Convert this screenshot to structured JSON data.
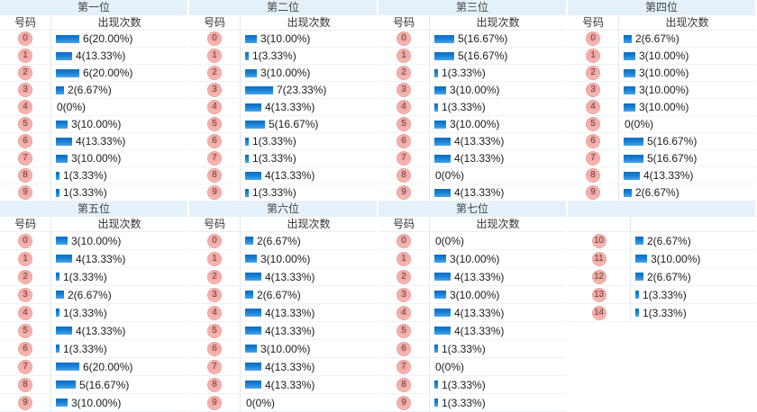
{
  "col_headers": {
    "number": "号码",
    "count": "出现次数"
  },
  "colors": {
    "header_band": "#e4f1fa",
    "bar_blue_top": "#0a6bc2",
    "bar_blue_bottom": "#4aa5e6",
    "badge_pink": "#f5b1ac",
    "badge_border": "#ec9f9a",
    "row_border": "#eef3f7",
    "value_text": "#1b1b1b"
  },
  "chart_data": [
    {
      "type": "bar",
      "title": "第一位",
      "continuation": false,
      "categories": [
        "0",
        "1",
        "2",
        "3",
        "4",
        "5",
        "6",
        "7",
        "8",
        "9"
      ],
      "values": [
        6,
        4,
        6,
        2,
        0,
        3,
        4,
        3,
        1,
        1
      ],
      "labels": [
        "6(20.00%)",
        "4(13.33%)",
        "6(20.00%)",
        "2(6.67%)",
        "0(0%)",
        "3(10.00%)",
        "4(13.33%)",
        "3(10.00%)",
        "1(3.33%)",
        "1(3.33%)"
      ]
    },
    {
      "type": "bar",
      "title": "第二位",
      "continuation": false,
      "categories": [
        "0",
        "1",
        "2",
        "3",
        "4",
        "5",
        "6",
        "7",
        "8",
        "9"
      ],
      "values": [
        3,
        1,
        3,
        7,
        4,
        5,
        1,
        1,
        4,
        1
      ],
      "labels": [
        "3(10.00%)",
        "1(3.33%)",
        "3(10.00%)",
        "7(23.33%)",
        "4(13.33%)",
        "5(16.67%)",
        "1(3.33%)",
        "1(3.33%)",
        "4(13.33%)",
        "1(3.33%)"
      ]
    },
    {
      "type": "bar",
      "title": "第三位",
      "continuation": false,
      "categories": [
        "0",
        "1",
        "2",
        "3",
        "4",
        "5",
        "6",
        "7",
        "8",
        "9"
      ],
      "values": [
        5,
        5,
        1,
        3,
        1,
        3,
        4,
        4,
        0,
        4
      ],
      "labels": [
        "5(16.67%)",
        "5(16.67%)",
        "1(3.33%)",
        "3(10.00%)",
        "1(3.33%)",
        "3(10.00%)",
        "4(13.33%)",
        "4(13.33%)",
        "0(0%)",
        "4(13.33%)"
      ]
    },
    {
      "type": "bar",
      "title": "第四位",
      "continuation": false,
      "categories": [
        "0",
        "1",
        "2",
        "3",
        "4",
        "5",
        "6",
        "7",
        "8",
        "9"
      ],
      "values": [
        2,
        3,
        3,
        3,
        3,
        0,
        5,
        5,
        4,
        2
      ],
      "labels": [
        "2(6.67%)",
        "3(10.00%)",
        "3(10.00%)",
        "3(10.00%)",
        "3(10.00%)",
        "0(0%)",
        "5(16.67%)",
        "5(16.67%)",
        "4(13.33%)",
        "2(6.67%)"
      ]
    },
    {
      "type": "bar",
      "title": "第五位",
      "continuation": false,
      "categories": [
        "0",
        "1",
        "2",
        "3",
        "4",
        "5",
        "6",
        "7",
        "8",
        "9"
      ],
      "values": [
        3,
        4,
        1,
        2,
        1,
        4,
        1,
        6,
        5,
        3
      ],
      "labels": [
        "3(10.00%)",
        "4(13.33%)",
        "1(3.33%)",
        "2(6.67%)",
        "1(3.33%)",
        "4(13.33%)",
        "1(3.33%)",
        "6(20.00%)",
        "5(16.67%)",
        "3(10.00%)"
      ]
    },
    {
      "type": "bar",
      "title": "第六位",
      "continuation": false,
      "categories": [
        "0",
        "1",
        "2",
        "3",
        "4",
        "5",
        "6",
        "7",
        "8",
        "9"
      ],
      "values": [
        2,
        3,
        4,
        2,
        4,
        4,
        3,
        4,
        4,
        0
      ],
      "labels": [
        "2(6.67%)",
        "3(10.00%)",
        "4(13.33%)",
        "2(6.67%)",
        "4(13.33%)",
        "4(13.33%)",
        "3(10.00%)",
        "4(13.33%)",
        "4(13.33%)",
        "0(0%)"
      ]
    },
    {
      "type": "bar",
      "title": "第七位",
      "continuation": false,
      "categories": [
        "0",
        "1",
        "2",
        "3",
        "4",
        "5",
        "6",
        "7",
        "8",
        "9"
      ],
      "values": [
        0,
        3,
        4,
        3,
        4,
        4,
        1,
        0,
        1,
        1
      ],
      "labels": [
        "0(0%)",
        "3(10.00%)",
        "4(13.33%)",
        "3(10.00%)",
        "4(13.33%)",
        "4(13.33%)",
        "1(3.33%)",
        "0(0%)",
        "1(3.33%)",
        "1(3.33%)"
      ]
    },
    {
      "type": "bar",
      "title": "",
      "continuation": true,
      "categories": [
        "10",
        "11",
        "12",
        "13",
        "14"
      ],
      "values": [
        2,
        3,
        2,
        1,
        1
      ],
      "labels": [
        "2(6.67%)",
        "3(10.00%)",
        "2(6.67%)",
        "1(3.33%)",
        "1(3.33%)"
      ]
    }
  ]
}
